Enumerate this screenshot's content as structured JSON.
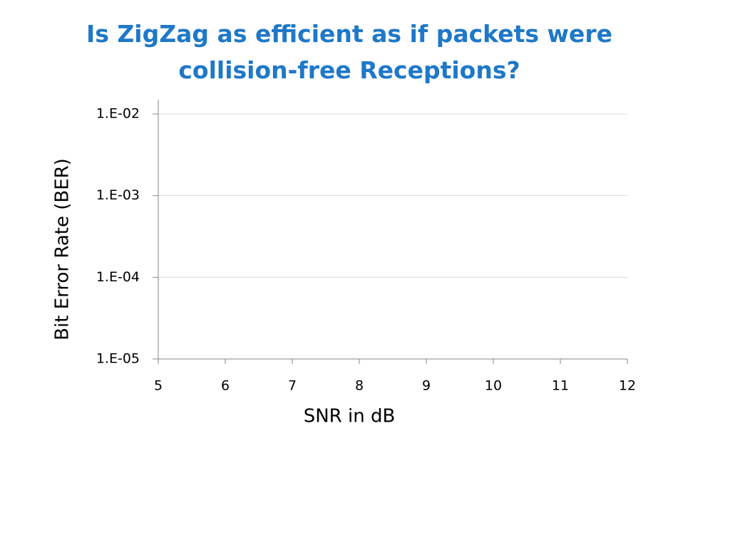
{
  "chart_data": {
    "type": "line",
    "title": "Is ZigZag as efficient as if packets were collision-free Receptions?",
    "x_label": "SNR in dB",
    "y_label": "Bit Error Rate (BER)",
    "xlim": [
      5,
      12
    ],
    "xticks": [
      5,
      6,
      7,
      8,
      9,
      10,
      11,
      12
    ],
    "ylim": [
      1e-05,
      0.01
    ],
    "yscale": "log",
    "yticks": [
      {
        "value": 1e-05,
        "label": "1.E-05"
      },
      {
        "value": 0.0001,
        "label": "1.E-04"
      },
      {
        "value": 0.001,
        "label": "1.E-03"
      },
      {
        "value": 0.01,
        "label": "1.E-02"
      }
    ],
    "grid": true
  }
}
